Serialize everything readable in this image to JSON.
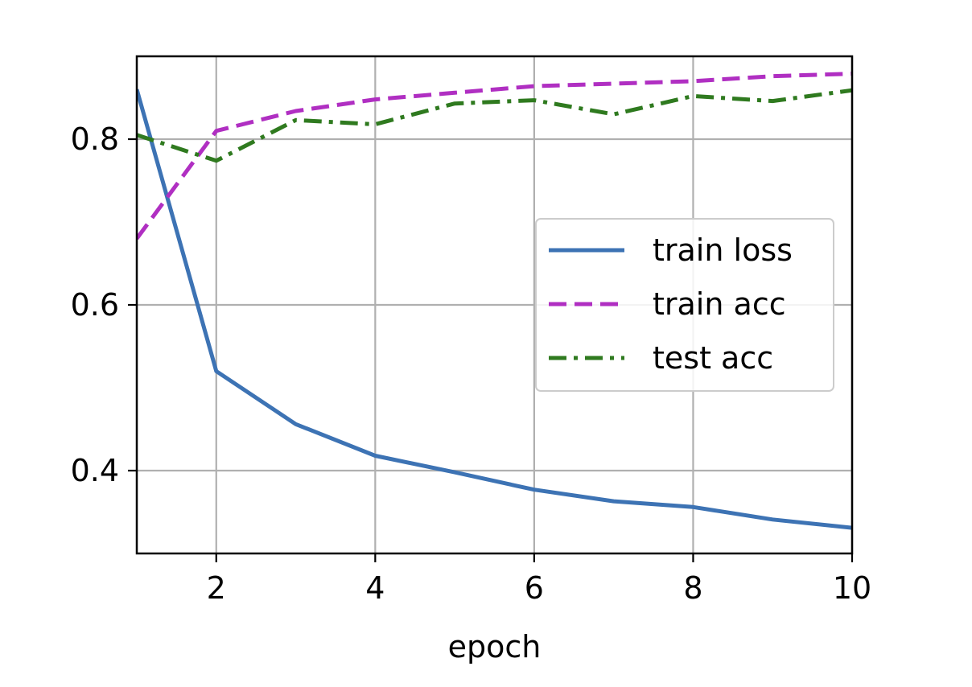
{
  "chart_data": {
    "type": "line",
    "title": "",
    "xlabel": "epoch",
    "ylabel": "",
    "xlim": [
      1,
      10
    ],
    "ylim": [
      0.3,
      0.9
    ],
    "xticks": [
      2,
      4,
      6,
      8,
      10
    ],
    "xtick_labels": [
      "2",
      "4",
      "6",
      "8",
      "10"
    ],
    "yticks": [
      0.4,
      0.6,
      0.8
    ],
    "ytick_labels": [
      "0.4",
      "0.6",
      "0.8"
    ],
    "grid": true,
    "legend_position": "center-right",
    "x": [
      1,
      2,
      3,
      4,
      5,
      6,
      7,
      8,
      9,
      10
    ],
    "series": [
      {
        "name": "train loss",
        "values": [
          0.86,
          0.52,
          0.456,
          0.418,
          0.398,
          0.377,
          0.363,
          0.356,
          0.341,
          0.331
        ],
        "color": "#3d73b4",
        "style": "solid"
      },
      {
        "name": "train acc",
        "values": [
          0.68,
          0.81,
          0.834,
          0.848,
          0.856,
          0.864,
          0.867,
          0.87,
          0.876,
          0.879
        ],
        "color": "#b02fc2",
        "style": "dashed"
      },
      {
        "name": "test acc",
        "values": [
          0.805,
          0.774,
          0.823,
          0.818,
          0.843,
          0.847,
          0.83,
          0.852,
          0.846,
          0.859
        ],
        "color": "#2f7a1f",
        "style": "dashdot"
      }
    ]
  }
}
